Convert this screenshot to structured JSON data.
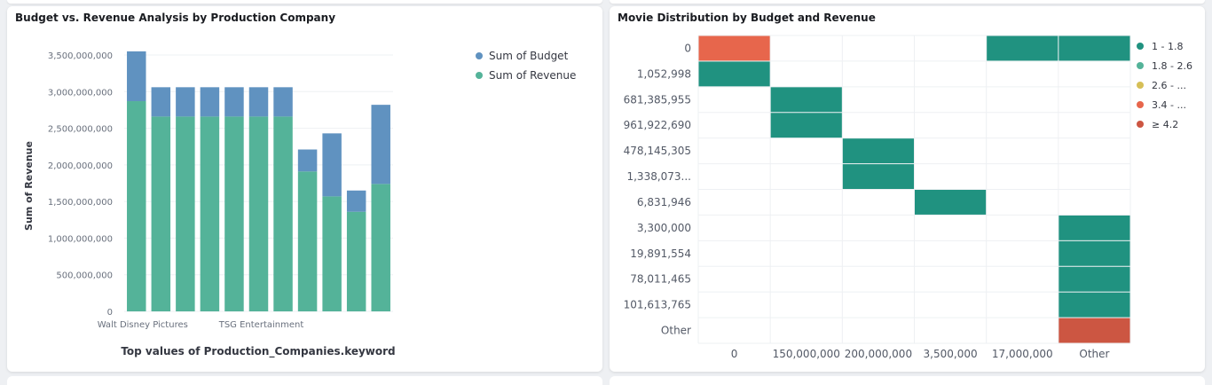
{
  "panels": {
    "left": {
      "title": "Budget vs. Revenue Analysis by Production Company"
    },
    "right": {
      "title": "Movie Distribution by Budget and Revenue"
    }
  },
  "chart_data": [
    {
      "type": "bar",
      "stacked": true,
      "title": "Budget vs. Revenue Analysis by Production Company",
      "xlabel": "Top values of Production_Companies.keyword",
      "ylabel": "Sum of Revenue",
      "ylim": [
        0,
        3500000000
      ],
      "yticks": [
        "0",
        "500,000,000",
        "1,000,000,000",
        "1,500,000,000",
        "2,000,000,000",
        "2,500,000,000",
        "3,000,000,000",
        "3,500,000,000"
      ],
      "grid": true,
      "legend_position": "top-right",
      "category_labels_visible": [
        {
          "index": 0,
          "label": "Walt Disney Pictures"
        },
        {
          "index": 5,
          "label": "TSG Entertainment"
        }
      ],
      "series": [
        {
          "name": "Sum of Revenue",
          "color": "#54b399",
          "values": [
            2870000000,
            2660000000,
            2660000000,
            2660000000,
            2660000000,
            2660000000,
            2660000000,
            1910000000,
            1570000000,
            1360000000,
            1740000000
          ]
        },
        {
          "name": "Sum of Budget",
          "color": "#6092c0",
          "values": [
            680000000,
            400000000,
            400000000,
            400000000,
            400000000,
            400000000,
            400000000,
            300000000,
            860000000,
            290000000,
            1080000000
          ]
        }
      ]
    },
    {
      "type": "heatmap",
      "title": "Movie Distribution by Budget and Revenue",
      "grid": true,
      "legend_position": "right",
      "x_labels": [
        "0",
        "150,000,000",
        "200,000,000",
        "3,500,000",
        "17,000,000",
        "Other"
      ],
      "y_labels": [
        "0",
        "1,052,998",
        "681,385,955",
        "961,922,690",
        "478,145,305",
        "1,338,073...",
        "6,831,946",
        "3,300,000",
        "19,891,554",
        "78,011,465",
        "101,613,765",
        "Other"
      ],
      "legend": [
        {
          "label": "1 - 1.8",
          "color": "#209280"
        },
        {
          "label": "1.8 - 2.6",
          "color": "#54b399"
        },
        {
          "label": "2.6 - ...",
          "color": "#d6bf57"
        },
        {
          "label": "3.4 - ...",
          "color": "#e7664c"
        },
        {
          "label": "≥ 4.2",
          "color": "#cc5642"
        }
      ],
      "cells": [
        {
          "x": 0,
          "y": 0,
          "color": "#e7664c"
        },
        {
          "x": 4,
          "y": 0,
          "color": "#209280"
        },
        {
          "x": 5,
          "y": 0,
          "color": "#209280"
        },
        {
          "x": 0,
          "y": 1,
          "color": "#209280"
        },
        {
          "x": 1,
          "y": 2,
          "color": "#209280"
        },
        {
          "x": 1,
          "y": 3,
          "color": "#209280"
        },
        {
          "x": 2,
          "y": 4,
          "color": "#209280"
        },
        {
          "x": 2,
          "y": 5,
          "color": "#209280"
        },
        {
          "x": 3,
          "y": 6,
          "color": "#209280"
        },
        {
          "x": 5,
          "y": 7,
          "color": "#209280"
        },
        {
          "x": 5,
          "y": 8,
          "color": "#209280"
        },
        {
          "x": 5,
          "y": 9,
          "color": "#209280"
        },
        {
          "x": 5,
          "y": 10,
          "color": "#209280"
        },
        {
          "x": 5,
          "y": 11,
          "color": "#cc5642"
        }
      ]
    }
  ]
}
